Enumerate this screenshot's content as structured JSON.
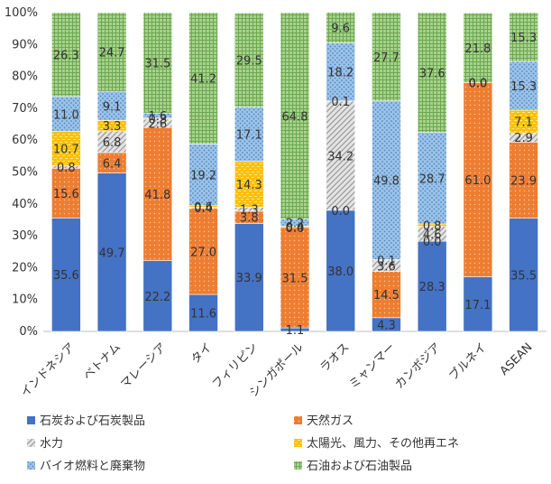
{
  "chart_data": {
    "type": "bar",
    "stacked": true,
    "normalized_percent": true,
    "title": "",
    "xlabel": "",
    "ylabel": "",
    "ylim": [
      0,
      100
    ],
    "y_ticks": [
      "0%",
      "10%",
      "20%",
      "30%",
      "40%",
      "50%",
      "60%",
      "70%",
      "80%",
      "90%",
      "100%"
    ],
    "grid": false,
    "legend_position": "bottom",
    "categories": [
      "インドネシア",
      "ベトナム",
      "マレーシア",
      "タイ",
      "フィリピン",
      "シンガポール",
      "ラオス",
      "ミャンマー",
      "カンボジア",
      "ブルネイ",
      "ASEAN"
    ],
    "series": [
      {
        "name": "石炭および石炭製品",
        "color": "#4472C4",
        "pattern": "solid",
        "values": [
          35.6,
          49.7,
          22.2,
          11.6,
          33.9,
          1.1,
          38.0,
          4.3,
          28.3,
          17.1,
          35.5
        ]
      },
      {
        "name": "天然ガス",
        "color": "#ED7D31",
        "pattern": "dots",
        "values": [
          15.6,
          6.4,
          41.8,
          27.0,
          3.8,
          31.5,
          0.0,
          14.5,
          0.0,
          61.0,
          23.9
        ]
      },
      {
        "name": "水力",
        "color": "#A5A5A5",
        "pattern": "diagonal",
        "values": [
          0.8,
          6.8,
          2.6,
          0.4,
          1.3,
          0.0,
          34.2,
          3.6,
          4.6,
          0.0,
          2.9
        ]
      },
      {
        "name": "太陽光、風力、その他再エネ",
        "color": "#FFC000",
        "pattern": "dash",
        "values": [
          10.7,
          3.3,
          0.3,
          0.6,
          14.3,
          0.4,
          0.1,
          0.1,
          0.8,
          0.0,
          7.1
        ]
      },
      {
        "name": "バイオ燃料と廃棄物",
        "color": "#5B9BD5",
        "pattern": "dots",
        "values": [
          11.0,
          9.1,
          1.6,
          19.2,
          17.1,
          2.2,
          18.2,
          49.8,
          28.7,
          0.0,
          15.3
        ]
      },
      {
        "name": "石油および石油製品",
        "color": "#70AD47",
        "pattern": "grid",
        "values": [
          26.3,
          24.7,
          31.5,
          41.2,
          29.5,
          64.8,
          9.6,
          27.7,
          37.6,
          21.8,
          15.3
        ]
      }
    ]
  }
}
